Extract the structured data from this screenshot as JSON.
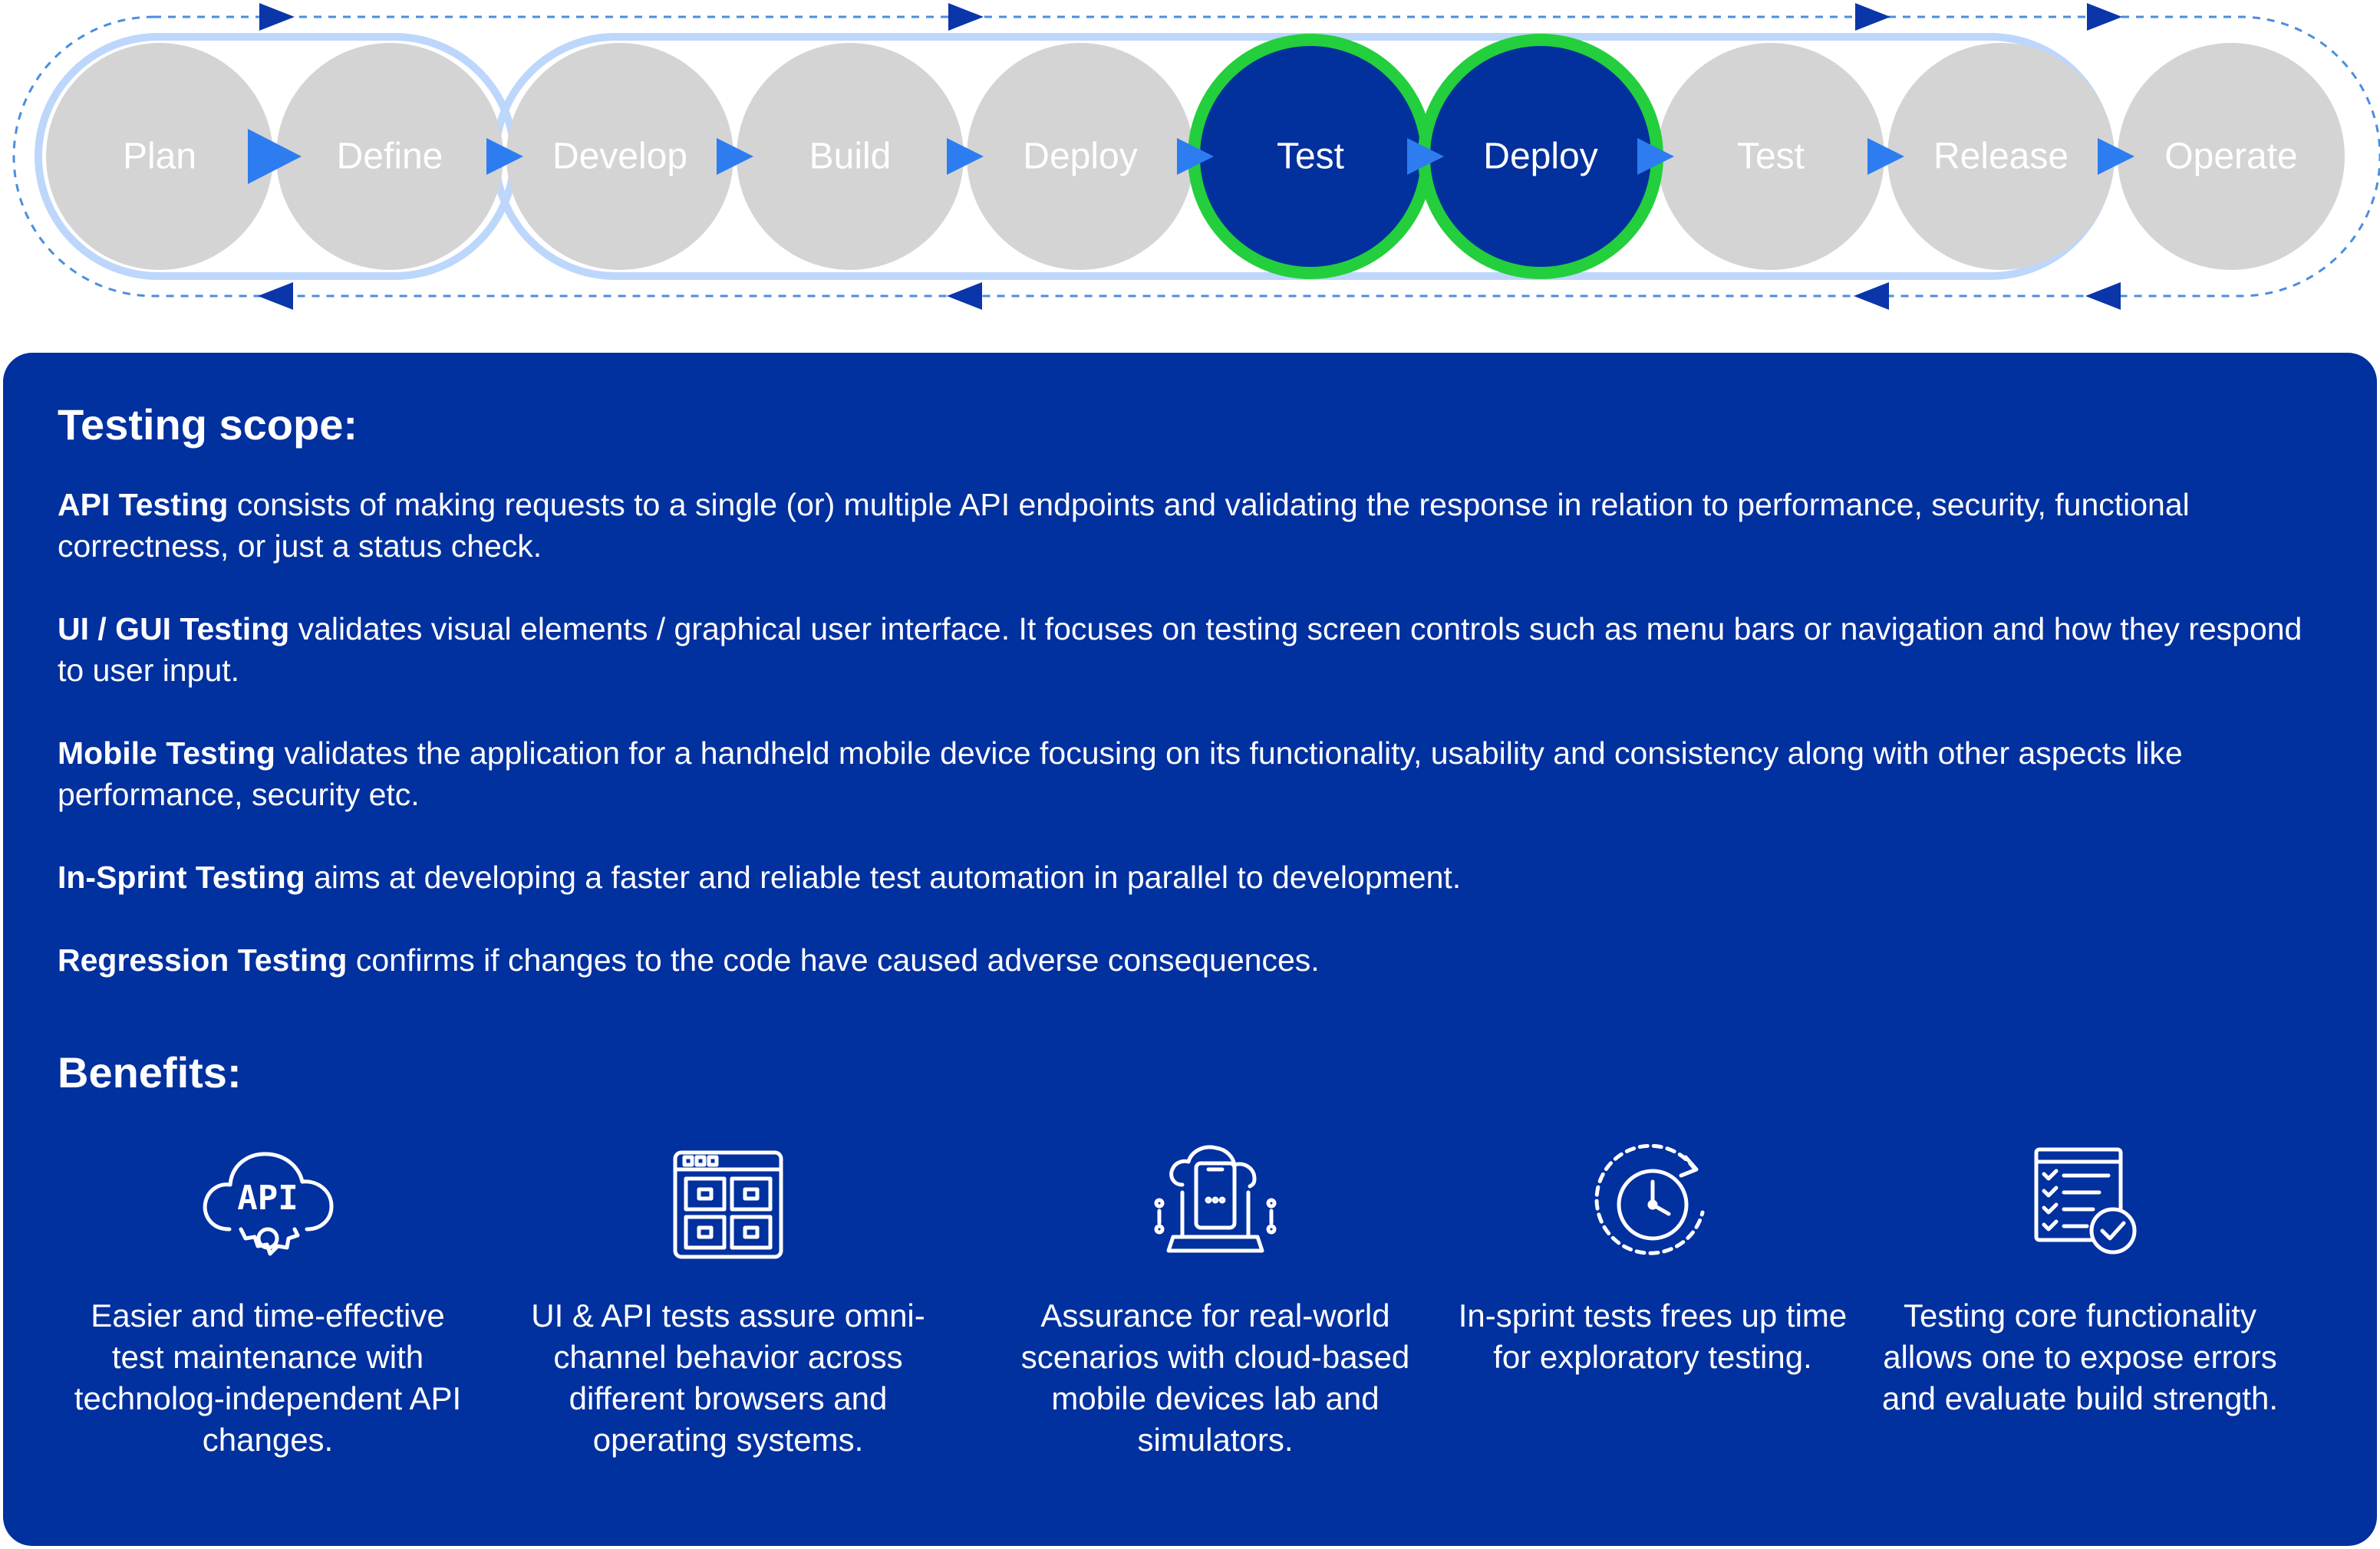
{
  "colors": {
    "panel": "#01309f",
    "stage_inactive": "#d4d4d4",
    "stage_active": "#02309d",
    "active_ring": "#23cf3c",
    "arrow": "#2d7df0",
    "loop_arrow": "#0a36a9",
    "capsule_border": "#bdd6fb",
    "loop_dash": "#4a8ee0"
  },
  "pipeline": {
    "stages": [
      {
        "label": "Plan",
        "active": false
      },
      {
        "label": "Define",
        "active": false
      },
      {
        "label": "Develop",
        "active": false
      },
      {
        "label": "Build",
        "active": false
      },
      {
        "label": "Deploy",
        "active": false
      },
      {
        "label": "Test",
        "active": true
      },
      {
        "label": "Deploy",
        "active": true
      },
      {
        "label": "Test",
        "active": false
      },
      {
        "label": "Release",
        "active": false
      },
      {
        "label": "Operate",
        "active": false
      }
    ]
  },
  "testing_scope": {
    "heading": "Testing scope:",
    "items": [
      {
        "term": "API Testing",
        "text": " consists of making requests to a single (or) multiple API endpoints and validating the response in relation to performance, security, functional correctness, or just a status check."
      },
      {
        "term": "UI / GUI Testing",
        "text": " validates visual elements / graphical user interface. It focuses on testing screen controls such as menu bars or navigation and how they respond to user input."
      },
      {
        "term": "Mobile Testing",
        "text": " validates the application for a handheld mobile device focusing on its functionality, usability and consistency along with other aspects like performance, security etc."
      },
      {
        "term": "In-Sprint Testing",
        "text": " aims at developing a faster and reliable test automation in parallel to development."
      },
      {
        "term": "Regression Testing",
        "text": " confirms if changes to the code have caused adverse consequences."
      }
    ]
  },
  "benefits": {
    "heading": "Benefits:",
    "items": [
      {
        "icon": "api-cloud-gear-icon",
        "icon_text": "API",
        "text": "Easier and time-effective test maintenance with technolog-independent API changes."
      },
      {
        "icon": "browser-window-grid-icon",
        "text": "UI & API tests assure omni-channel behavior across different browsers and operating systems."
      },
      {
        "icon": "cloud-mobile-device-icon",
        "text": "Assurance for real-world scenarios with cloud-based mobile devices lab and simulators."
      },
      {
        "icon": "clock-refresh-icon",
        "text": "In-sprint tests frees up time for exploratory testing."
      },
      {
        "icon": "checklist-check-icon",
        "text": "Testing core functionality allows one to expose errors and evaluate build strength."
      }
    ]
  }
}
